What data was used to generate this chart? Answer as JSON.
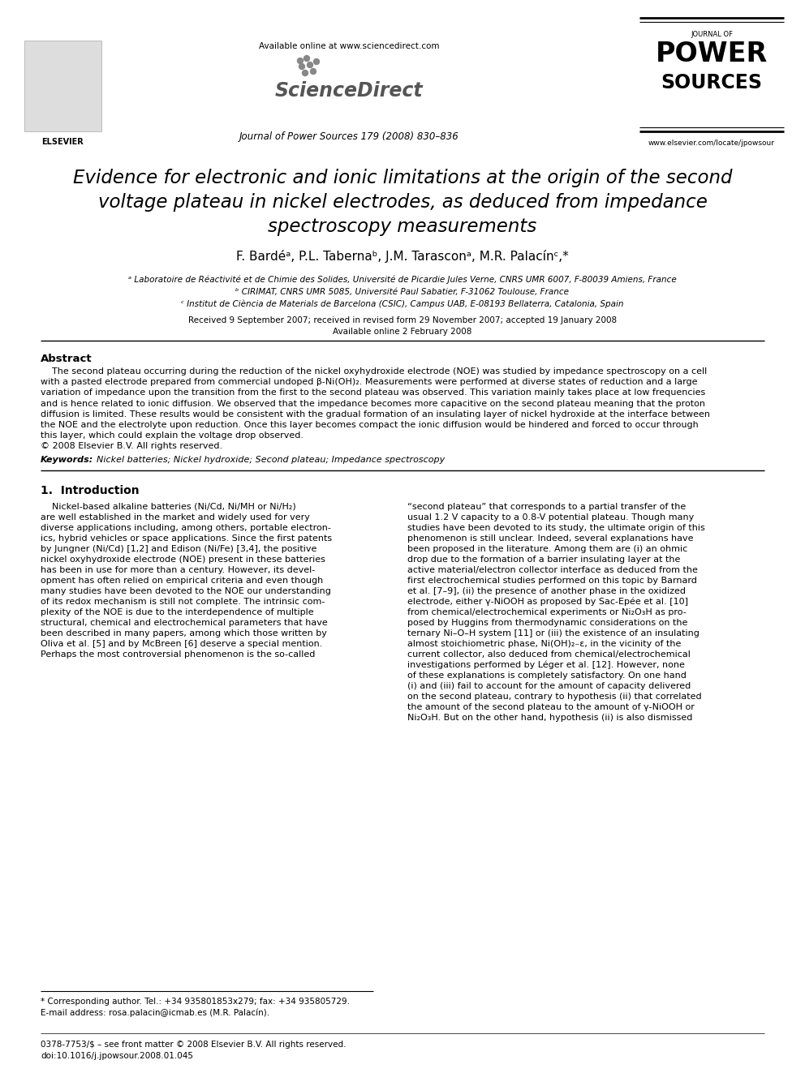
{
  "title_line1": "Evidence for electronic and ionic limitations at the origin of the second",
  "title_line2": "voltage plateau in nickel electrodes, as deduced from impedance",
  "title_line3": "spectroscopy measurements",
  "authors": "F. Bardéᵃ, P.L. Tabernaᵇ, J.M. Tarasconᵃ, M.R. Palacínᶜ,*",
  "affiliation_a": "ᵃ Laboratoire de Réactivité et de Chimie des Solides, Université de Picardie Jules Verne, CNRS UMR 6007, F-80039 Amiens, France",
  "affiliation_b": "ᵇ CIRIMAT, CNRS UMR 5085, Université Paul Sabatier, F-31062 Toulouse, France",
  "affiliation_c": "ᶜ Institut de Ciència de Materials de Barcelona (CSIC), Campus UAB, E-08193 Bellaterra, Catalonia, Spain",
  "received": "Received 9 September 2007; received in revised form 29 November 2007; accepted 19 January 2008",
  "available": "Available online 2 February 2008",
  "journal_line": "Journal of Power Sources 179 (2008) 830–836",
  "available_online": "Available online at www.sciencedirect.com",
  "journal_url": "www.elsevier.com/locate/jpowsour",
  "abstract_title": "Abstract",
  "abstract_text": "    The second plateau occurring during the reduction of the nickel oxyhydroxide electrode (NOE) was studied by impedance spectroscopy on a cell\nwith a pasted electrode prepared from commercial undoped β-Ni(OH)₂. Measurements were performed at diverse states of reduction and a large\nvariation of impedance upon the transition from the first to the second plateau was observed. This variation mainly takes place at low frequencies\nand is hence related to ionic diffusion. We observed that the impedance becomes more capacitive on the second plateau meaning that the proton\ndiffusion is limited. These results would be consistent with the gradual formation of an insulating layer of nickel hydroxide at the interface between\nthe NOE and the electrolyte upon reduction. Once this layer becomes compact the ionic diffusion would be hindered and forced to occur through\nthis layer, which could explain the voltage drop observed.\n© 2008 Elsevier B.V. All rights reserved.",
  "keywords_label": "Keywords:",
  "keywords_text": "  Nickel batteries; Nickel hydroxide; Second plateau; Impedance spectroscopy",
  "intro_title": "1.  Introduction",
  "intro_col1": "    Nickel-based alkaline batteries (Ni/Cd, Ni/MH or Ni/H₂)\nare well established in the market and widely used for very\ndiverse applications including, among others, portable electron-\nics, hybrid vehicles or space applications. Since the first patents\nby Jungner (Ni/Cd) [1,2] and Edison (Ni/Fe) [3,4], the positive\nnickel oxyhydroxide electrode (NOE) present in these batteries\nhas been in use for more than a century. However, its devel-\nopment has often relied on empirical criteria and even though\nmany studies have been devoted to the NOE our understanding\nof its redox mechanism is still not complete. The intrinsic com-\nplexity of the NOE is due to the interdependence of multiple\nstructural, chemical and electrochemical parameters that have\nbeen described in many papers, among which those written by\nOliva et al. [5] and by McBreen [6] deserve a special mention.\nPerhaps the most controversial phenomenon is the so-called",
  "intro_col2": "“second plateau” that corresponds to a partial transfer of the\nusual 1.2 V capacity to a 0.8-V potential plateau. Though many\nstudies have been devoted to its study, the ultimate origin of this\nphenomenon is still unclear. Indeed, several explanations have\nbeen proposed in the literature. Among them are (i) an ohmic\ndrop due to the formation of a barrier insulating layer at the\nactive material/electron collector interface as deduced from the\nfirst electrochemical studies performed on this topic by Barnard\net al. [7–9], (ii) the presence of another phase in the oxidized\nelectrode, either γ-NiOOH as proposed by Sac-Epée et al. [10]\nfrom chemical/electrochemical experiments or Ni₂O₃H as pro-\nposed by Huggins from thermodynamic considerations on the\nternary Ni–O–H system [11] or (iii) the existence of an insulating\nalmost stoichiometric phase, Ni(OH)₂₋ε, in the vicinity of the\ncurrent collector, also deduced from chemical/electrochemical\ninvestigations performed by Léger et al. [12]. However, none\nof these explanations is completely satisfactory. On one hand\n(i) and (iii) fail to account for the amount of capacity delivered\non the second plateau, contrary to hypothesis (ii) that correlated\nthe amount of the second plateau to the amount of γ-NiOOH or\nNi₂O₃H. But on the other hand, hypothesis (ii) is also dismissed",
  "footnote_star": "* Corresponding author. Tel.: +34 935801853x279; fax: +34 935805729.",
  "footnote_email": "E-mail address: rosa.palacin@icmab.es (M.R. Palacín).",
  "footer_issn": "0378-7753/$ – see front matter © 2008 Elsevier B.V. All rights reserved.",
  "footer_doi": "doi:10.1016/j.jpowsour.2008.01.045",
  "bg_color": "#ffffff",
  "text_color": "#000000"
}
